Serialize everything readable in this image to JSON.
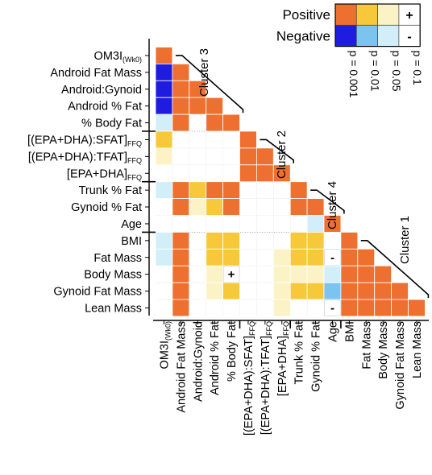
{
  "chart_data": {
    "type": "heatmap",
    "variables": [
      {
        "main": "OM3I",
        "sub": "(Wk0)"
      },
      {
        "main": "Android Fat Mass"
      },
      {
        "main": "Android:Gynoid"
      },
      {
        "main": "Android % Fat"
      },
      {
        "main": "% Body Fat"
      },
      {
        "main": "[(EPA+DHA):SFAT]",
        "sub": "FFQ"
      },
      {
        "main": "[(EPA+DHA):TFAT]",
        "sub": "FFQ"
      },
      {
        "main": "[EPA+DHA]",
        "sub": "FFQ"
      },
      {
        "main": "Trunk % Fat"
      },
      {
        "main": "Gynoid % Fat"
      },
      {
        "main": "Age"
      },
      {
        "main": "BMI"
      },
      {
        "main": "Fat Mass"
      },
      {
        "main": "Body Mass"
      },
      {
        "main": "Gynoid Fat Mass"
      },
      {
        "main": "Lean Mass"
      }
    ],
    "value_encoding": "sign * level; level 4 = p=0.001, 3 = p=0.01, 2 = p=0.05, 1 = p=0.1, 0 = not significant; positive sign = positive correlation",
    "matrix": [
      [
        4,
        0,
        0,
        0,
        0,
        0,
        0,
        0,
        0,
        0,
        0,
        0,
        0,
        0,
        0,
        0
      ],
      [
        -4,
        4,
        0,
        0,
        0,
        0,
        0,
        0,
        0,
        0,
        0,
        0,
        0,
        0,
        0,
        0
      ],
      [
        -4,
        4,
        4,
        0,
        0,
        0,
        0,
        0,
        0,
        0,
        0,
        0,
        0,
        0,
        0,
        0
      ],
      [
        -4,
        4,
        4,
        4,
        0,
        0,
        0,
        0,
        0,
        0,
        0,
        0,
        0,
        0,
        0,
        0
      ],
      [
        -2,
        4,
        0,
        4,
        4,
        0,
        0,
        0,
        0,
        0,
        0,
        0,
        0,
        0,
        0,
        0
      ],
      [
        3,
        0,
        0,
        0,
        0,
        4,
        0,
        0,
        0,
        0,
        0,
        0,
        0,
        0,
        0,
        0
      ],
      [
        2,
        0,
        0,
        0,
        0,
        4,
        4,
        0,
        0,
        0,
        0,
        0,
        0,
        0,
        0,
        0
      ],
      [
        0,
        0,
        0,
        0,
        0,
        4,
        4,
        4,
        0,
        0,
        0,
        0,
        0,
        0,
        0,
        0
      ],
      [
        -2,
        4,
        3,
        4,
        4,
        0,
        0,
        0,
        4,
        0,
        0,
        0,
        0,
        0,
        0,
        0
      ],
      [
        0,
        4,
        2,
        3,
        4,
        0,
        0,
        0,
        4,
        4,
        0,
        0,
        0,
        0,
        0,
        0
      ],
      [
        0,
        0,
        0,
        0,
        0,
        0,
        0,
        0,
        0,
        -2,
        4,
        0,
        0,
        0,
        0,
        0
      ],
      [
        -2,
        4,
        0,
        3,
        3,
        0,
        0,
        0,
        3,
        3,
        0,
        4,
        0,
        0,
        0,
        0
      ],
      [
        -2,
        4,
        0,
        3,
        3,
        0,
        0,
        2,
        3,
        3,
        -1,
        4,
        4,
        0,
        0,
        0
      ],
      [
        0,
        4,
        0,
        2,
        1,
        0,
        0,
        2,
        2,
        2,
        -2,
        4,
        4,
        4,
        0,
        0
      ],
      [
        0,
        4,
        0,
        2,
        3,
        0,
        0,
        2,
        3,
        3,
        -3,
        4,
        4,
        4,
        4,
        0
      ],
      [
        0,
        4,
        0,
        0,
        0,
        0,
        0,
        2,
        0,
        0,
        -1,
        4,
        4,
        4,
        4,
        4
      ]
    ],
    "clusters": [
      {
        "label": "Cluster 3"
      },
      {
        "label": "Cluster 2"
      },
      {
        "label": "Cluster 4"
      },
      {
        "label": "Cluster 1"
      }
    ],
    "legend": {
      "rows": [
        {
          "label": "Positive",
          "colors": [
            "#ee7030",
            "#f7c93a",
            "#fbf2c6",
            "#ffffff"
          ],
          "symbol": "+"
        },
        {
          "label": "Negative",
          "colors": [
            "#1f1ce0",
            "#7cc4f0",
            "#d2eef9",
            "#ffffff"
          ],
          "symbol": "-"
        }
      ],
      "levels": [
        "p = 0.001",
        "p = 0.01",
        "p = 0.05",
        "p = 0.1"
      ]
    }
  }
}
